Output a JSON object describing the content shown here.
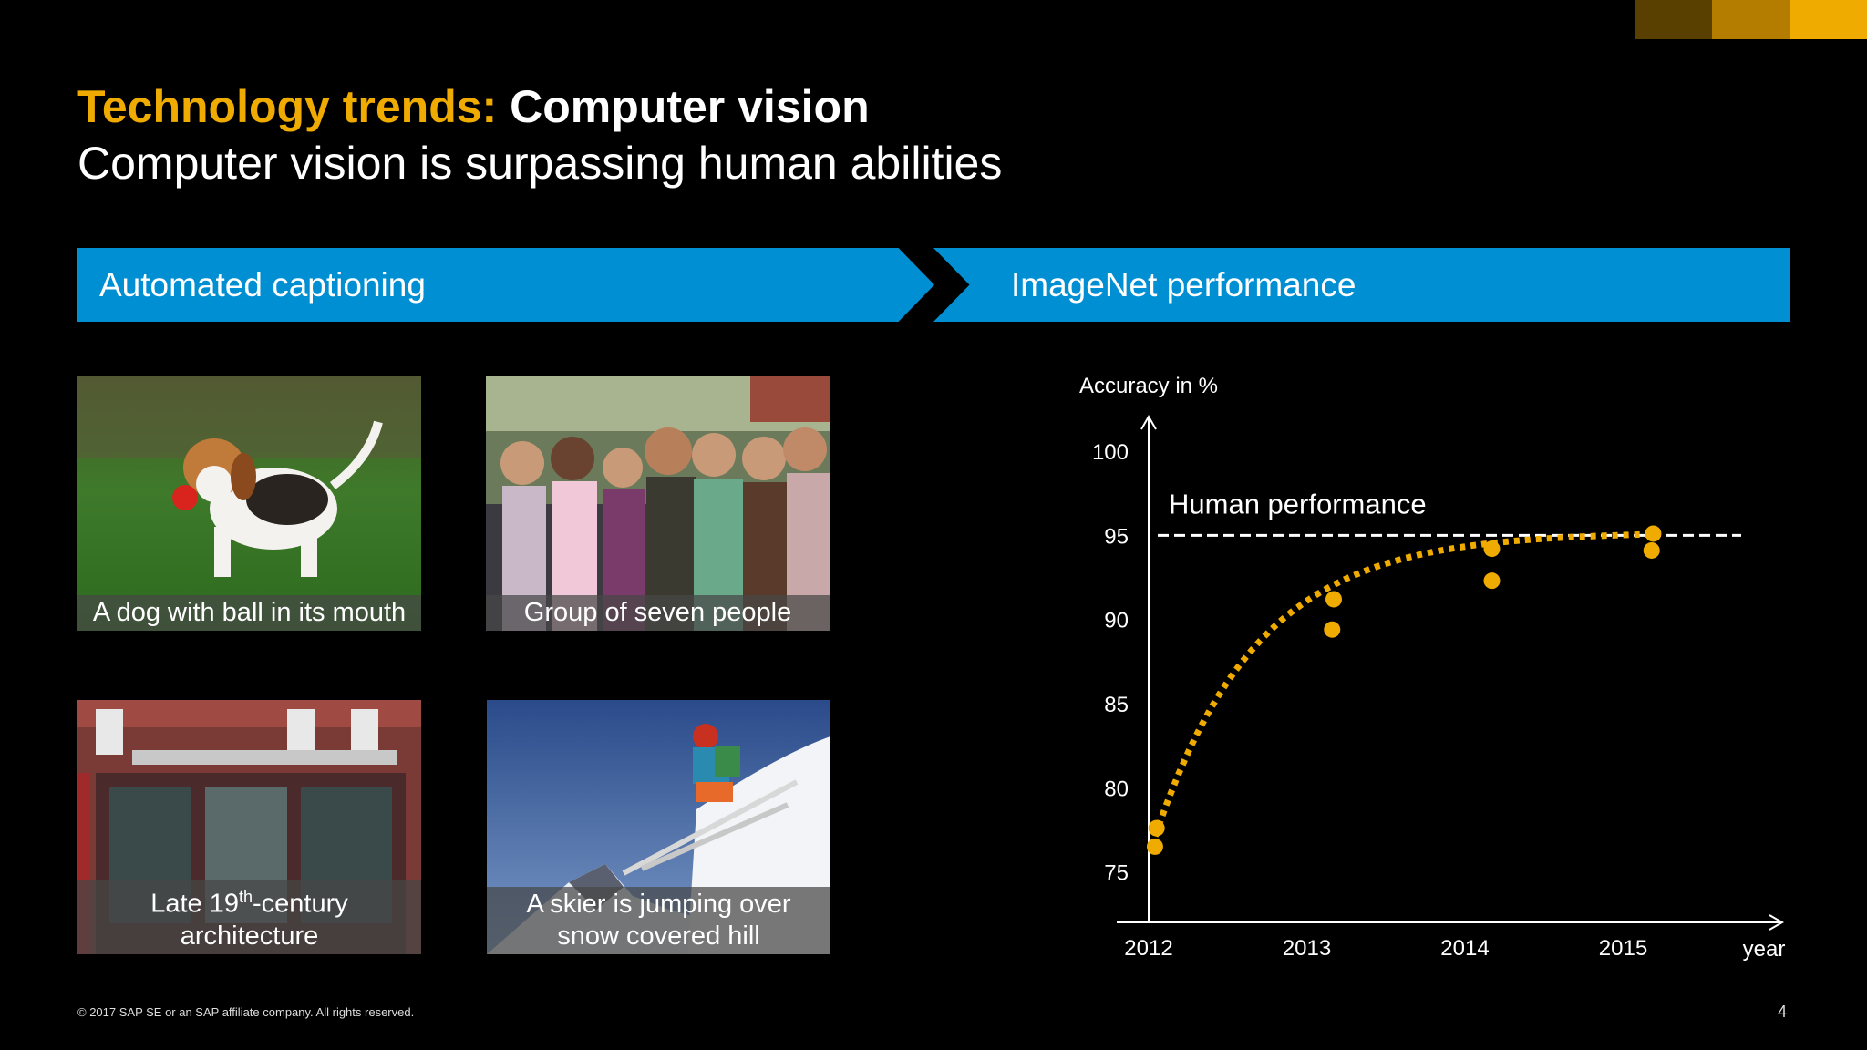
{
  "slide": {
    "title_accent": "Technology trends:",
    "title_main": "Computer vision",
    "subtitle": "Computer vision is surpassing human abilities",
    "footer": "© 2017 SAP SE or an SAP affiliate company. All rights reserved.",
    "page_number": "4"
  },
  "banners": {
    "left": "Automated captioning",
    "right": "ImageNet performance"
  },
  "captions": {
    "dog": "A dog with ball in its mouth",
    "group": "Group of seven people",
    "arch_pre": "Late 19",
    "arch_sup": "th",
    "arch_post": "-century",
    "arch_line2": "architecture",
    "skier_line1": "A skier is jumping over",
    "skier_line2": "snow covered hill"
  },
  "colors": {
    "accent": "#f0ab00",
    "banner_blue": "#008fd3",
    "corner_dark": "#5a4000",
    "corner_mid": "#b57d00"
  },
  "chart_data": {
    "type": "scatter",
    "ylabel": "Accuracy in %",
    "xlabel": "year",
    "x_ticks": [
      "2012",
      "2013",
      "2014",
      "2015"
    ],
    "y_ticks": [
      75,
      80,
      85,
      90,
      95,
      100
    ],
    "ylim": [
      72,
      100
    ],
    "xlim": [
      2012,
      2016
    ],
    "reference_line": {
      "label": "Human performance",
      "value": 95
    },
    "points": [
      {
        "x": 2012.05,
        "y": 77.6
      },
      {
        "x": 2012.04,
        "y": 76.5
      },
      {
        "x": 2013.17,
        "y": 91.2
      },
      {
        "x": 2013.16,
        "y": 89.4
      },
      {
        "x": 2014.17,
        "y": 94.2
      },
      {
        "x": 2014.17,
        "y": 92.3
      },
      {
        "x": 2015.19,
        "y": 95.1
      },
      {
        "x": 2015.18,
        "y": 94.1
      }
    ],
    "trend": "dotted exponential curve approaching human performance",
    "grid": false,
    "legend": "none"
  }
}
